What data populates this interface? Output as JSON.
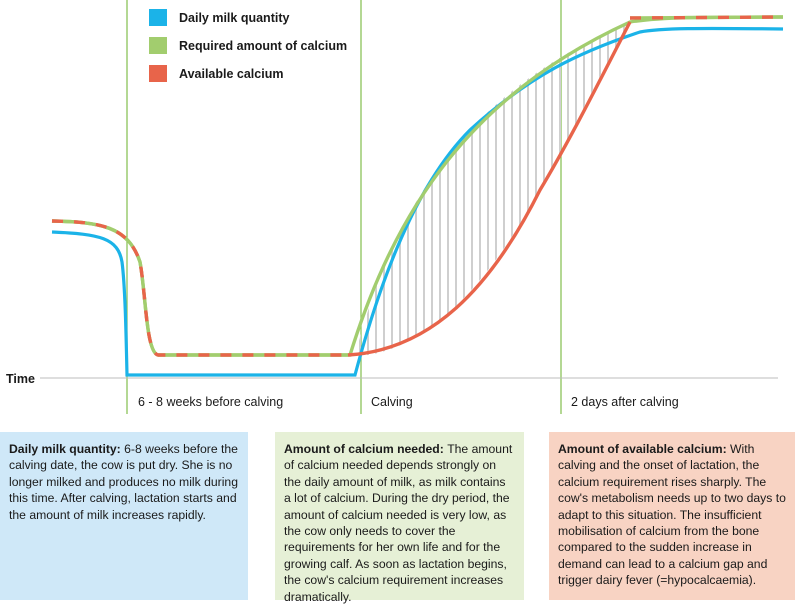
{
  "legend": [
    {
      "label": "Daily milk quantity",
      "color": "#1bb3e8"
    },
    {
      "label": "Required amount of calcium",
      "color": "#a2cd6e"
    },
    {
      "label": "Available calcium",
      "color": "#e8644a"
    }
  ],
  "axis": {
    "y_label": "Time",
    "markers": [
      "6 - 8 weeks before calving",
      "Calving",
      "2 days after calving"
    ]
  },
  "colors": {
    "milk": "#1bb3e8",
    "required": "#a2cd6e",
    "available": "#e8644a",
    "marker_line": "#8cc45a",
    "hatch": "#cfcfcf",
    "axis": "#bdbdbd"
  },
  "boxes": {
    "milk": {
      "title": "Daily milk quantity:",
      "text": "6-8 weeks before the calving date, the cow is put dry. She is no longer milked and produces no milk during this time. After calving, lactation starts and the amount of milk increases rapidly."
    },
    "need": {
      "title": "Amount of calcium needed:",
      "text": "The amount of calcium needed depends strongly on the daily amount of milk, as milk contains a lot of calcium. During the dry period, the amount of calcium needed is very low, as the cow only needs to cover the requirements for her own life and for the growing calf. As soon as lactation begins, the cow's calcium requirement increases dramatically."
    },
    "avail": {
      "title": "Amount of available calcium:",
      "text": "With calving and the onset of lactation, the calcium requirement rises sharply. The cow's metabolism needs up to two days to adapt to this situation. The insufficient mobilisation of calcium from the bone compared to the sudden increase in demand can lead to a calcium gap and trigger dairy fever (=hypocalcaemia)."
    }
  }
}
